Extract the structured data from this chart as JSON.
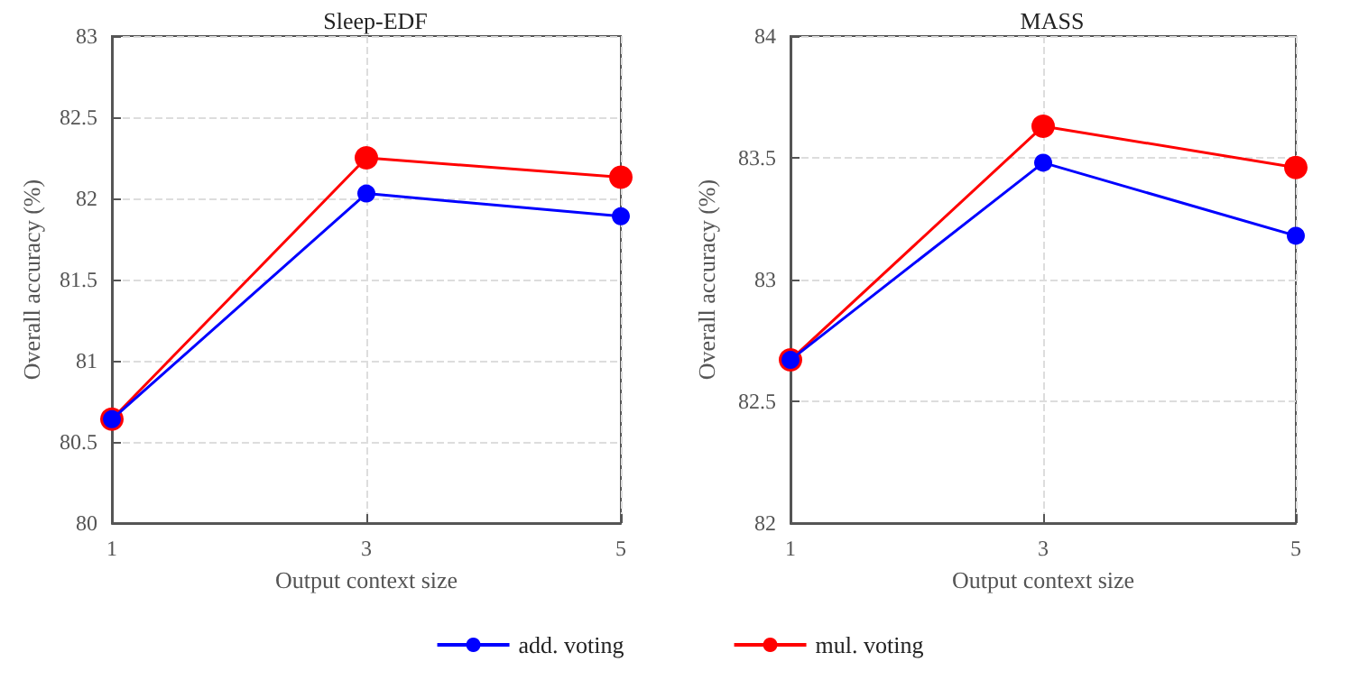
{
  "chart_data": [
    {
      "type": "line",
      "title": "Sleep-EDF",
      "xlabel": "Output context size",
      "ylabel": "Overall accuracy (%)",
      "x": [
        1,
        3,
        5
      ],
      "xlim": [
        1,
        5
      ],
      "xticks": [
        1,
        3,
        5
      ],
      "ylim": [
        80,
        83
      ],
      "yticks": [
        80,
        80.5,
        81,
        81.5,
        82,
        82.5,
        83
      ],
      "grid": true,
      "marker": "circle",
      "line_style": "solid",
      "legend": "bottom",
      "series": [
        {
          "name": "add. voting",
          "color": "#0000ff",
          "values": [
            80.64,
            82.03,
            81.89
          ]
        },
        {
          "name": "mul. voting",
          "color": "#ff0000",
          "values": [
            80.64,
            82.25,
            82.13
          ]
        }
      ]
    },
    {
      "type": "line",
      "title": "MASS",
      "xlabel": "Output context size",
      "ylabel": "Overall accuracy (%)",
      "x": [
        1,
        3,
        5
      ],
      "xlim": [
        1,
        5
      ],
      "xticks": [
        1,
        3,
        5
      ],
      "ylim": [
        82,
        84
      ],
      "yticks": [
        82,
        82.5,
        83,
        83.5,
        84
      ],
      "grid": true,
      "marker": "circle",
      "line_style": "solid",
      "series": [
        {
          "color": "#0000ff",
          "values": [
            82.67,
            83.48,
            83.18
          ]
        },
        {
          "color": "#ff0000",
          "values": [
            82.67,
            83.63,
            83.46
          ]
        }
      ]
    }
  ]
}
